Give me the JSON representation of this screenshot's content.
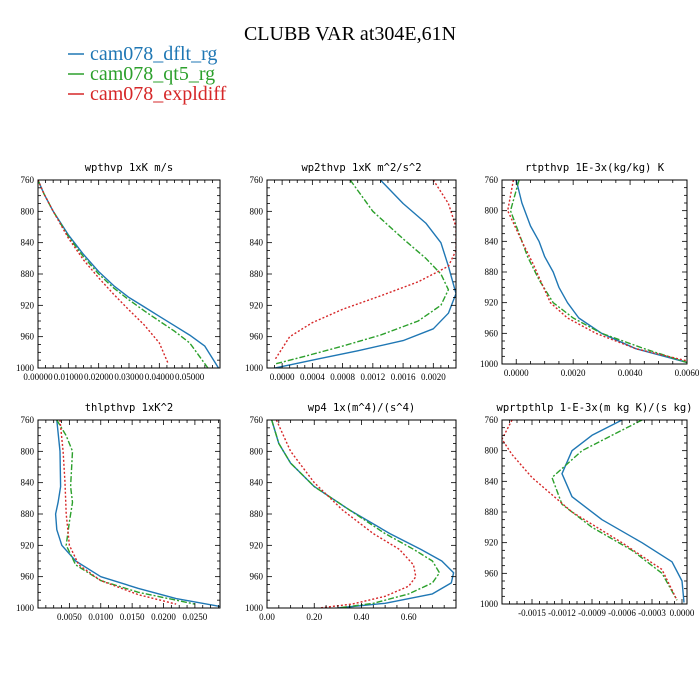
{
  "figure": {
    "title": "CLUBB VAR at304E,61N"
  },
  "legend": [
    {
      "label": "cam078_dflt_rg",
      "color": "#1f77b4"
    },
    {
      "label": "cam078_qt5_rg",
      "color": "#2ca02c"
    },
    {
      "label": "cam078_expldiff",
      "color": "#d62728"
    }
  ],
  "chart_data": [
    {
      "type": "line",
      "title": "wpthvp  1xK m/s",
      "xlim": [
        0.0,
        0.06
      ],
      "ylim": [
        760,
        1000
      ],
      "y_inverted": true,
      "xticks": [
        "0.00000",
        "0.01000",
        "0.02000",
        "0.03000",
        "0.04000",
        "0.05000"
      ],
      "xtick_values": [
        0.0,
        0.01,
        0.02,
        0.03,
        0.04,
        0.05
      ],
      "yticks": [
        "760",
        "800",
        "840",
        "880",
        "920",
        "960",
        "1000"
      ],
      "ytick_values": [
        760,
        800,
        840,
        880,
        920,
        960,
        1000
      ],
      "series": [
        {
          "name": "cam078_dflt_rg",
          "x": [
            0.0,
            0.002,
            0.005,
            0.01,
            0.015,
            0.02,
            0.025,
            0.03,
            0.035,
            0.04,
            0.045,
            0.05,
            0.055,
            0.0595
          ],
          "y": [
            760,
            778,
            800,
            830,
            855,
            877,
            895,
            910,
            922,
            934,
            946,
            958,
            972,
            1000
          ]
        },
        {
          "name": "cam078_qt5_rg",
          "x": [
            0.0,
            0.002,
            0.005,
            0.01,
            0.015,
            0.02,
            0.025,
            0.03,
            0.035,
            0.04,
            0.045,
            0.05,
            0.056
          ],
          "y": [
            760,
            778,
            800,
            832,
            858,
            880,
            898,
            913,
            927,
            940,
            953,
            968,
            1000
          ]
        },
        {
          "name": "cam078_expldiff",
          "x": [
            0.0,
            0.002,
            0.005,
            0.01,
            0.015,
            0.02,
            0.025,
            0.03,
            0.035,
            0.04,
            0.043
          ],
          "y": [
            760,
            778,
            800,
            834,
            862,
            885,
            906,
            926,
            945,
            968,
            995
          ]
        }
      ]
    },
    {
      "type": "line",
      "title": "wp2thvp  1xK m^2/s^2",
      "xlim": [
        -0.0002,
        0.0023
      ],
      "ylim": [
        760,
        1000
      ],
      "y_inverted": true,
      "xticks": [
        "0.0000",
        "0.0004",
        "0.0008",
        "0.0012",
        "0.0016",
        "0.0020"
      ],
      "xtick_values": [
        0.0,
        0.0004,
        0.0008,
        0.0012,
        0.0016,
        0.002
      ],
      "yticks": [
        "760",
        "800",
        "840",
        "880",
        "920",
        "960",
        "1000"
      ],
      "ytick_values": [
        760,
        800,
        840,
        880,
        920,
        960,
        1000
      ],
      "series": [
        {
          "name": "cam078_dflt_rg",
          "x": [
            0.0013,
            0.0016,
            0.0019,
            0.0021,
            0.0022,
            0.0023,
            0.0022,
            0.002,
            0.0016,
            0.001,
            0.0005,
            0.0001,
            -0.0001
          ],
          "y": [
            760,
            790,
            815,
            840,
            870,
            905,
            930,
            950,
            965,
            978,
            988,
            996,
            1000
          ]
        },
        {
          "name": "cam078_qt5_rg",
          "x": [
            0.0009,
            0.0012,
            0.0016,
            0.0019,
            0.0021,
            0.0022,
            0.0021,
            0.0018,
            0.0013,
            0.0008,
            0.0003,
            -0.0001
          ],
          "y": [
            760,
            800,
            835,
            860,
            880,
            900,
            920,
            940,
            958,
            972,
            985,
            995
          ]
        },
        {
          "name": "cam078_expldiff",
          "x": [
            0.002,
            0.0022,
            0.0023,
            0.0023,
            0.0022,
            0.0018,
            0.0013,
            0.0008,
            0.0004,
            0.0001,
            -0.0001
          ],
          "y": [
            760,
            790,
            820,
            850,
            870,
            890,
            908,
            925,
            942,
            960,
            990
          ]
        }
      ]
    },
    {
      "type": "line",
      "title": "rtpthvp  1E-3x(kg/kg) K",
      "xlim": [
        -0.0005,
        0.006
      ],
      "ylim": [
        760,
        1000
      ],
      "y_inverted": true,
      "xticks": [
        "0.0000",
        "0.0020",
        "0.0040",
        "0.0060"
      ],
      "xtick_values": [
        0.0,
        0.002,
        0.004,
        0.006
      ],
      "yticks": [
        "760",
        "800",
        "840",
        "880",
        "920",
        "960",
        "1000"
      ],
      "ytick_values": [
        760,
        800,
        840,
        880,
        920,
        960,
        1000
      ],
      "series": [
        {
          "name": "cam078_dflt_rg",
          "x": [
            0.0,
            0.0002,
            0.0005,
            0.0008,
            0.001,
            0.0013,
            0.0015,
            0.0018,
            0.0022,
            0.003,
            0.0042,
            0.006
          ],
          "y": [
            760,
            790,
            820,
            840,
            860,
            880,
            900,
            920,
            940,
            960,
            980,
            998
          ]
        },
        {
          "name": "cam078_qt5_rg",
          "x": [
            0.0001,
            -0.0002,
            0.0001,
            0.0004,
            0.0008,
            0.0013,
            0.002,
            0.003,
            0.0045,
            0.006
          ],
          "y": [
            760,
            800,
            830,
            860,
            890,
            920,
            940,
            960,
            980,
            998
          ]
        },
        {
          "name": "cam078_expldiff",
          "x": [
            -0.0001,
            -0.0003,
            0.0002,
            0.0006,
            0.0009,
            0.0012,
            0.0018,
            0.0028,
            0.0042,
            0.006
          ],
          "y": [
            760,
            800,
            840,
            870,
            895,
            920,
            940,
            960,
            980,
            996
          ]
        }
      ]
    },
    {
      "type": "line",
      "title": "thlpthvp  1xK^2",
      "xlim": [
        0.0,
        0.029
      ],
      "ylim": [
        760,
        1000
      ],
      "y_inverted": true,
      "xticks": [
        "0.0050",
        "0.0100",
        "0.0150",
        "0.0200",
        "0.0250"
      ],
      "xtick_values": [
        0.005,
        0.01,
        0.015,
        0.02,
        0.025
      ],
      "yticks": [
        "760",
        "800",
        "840",
        "880",
        "920",
        "960",
        "1000"
      ],
      "ytick_values": [
        760,
        800,
        840,
        880,
        920,
        960,
        1000
      ],
      "series": [
        {
          "name": "cam078_dflt_rg",
          "x": [
            0.003,
            0.0035,
            0.0036,
            0.0032,
            0.0028,
            0.003,
            0.0038,
            0.006,
            0.01,
            0.016,
            0.022,
            0.029
          ],
          "y": [
            760,
            800,
            845,
            865,
            880,
            900,
            920,
            940,
            960,
            975,
            988,
            998
          ]
        },
        {
          "name": "cam078_qt5_rg",
          "x": [
            0.003,
            0.0045,
            0.0055,
            0.0052,
            0.0055,
            0.005,
            0.0045,
            0.006,
            0.01,
            0.016,
            0.025
          ],
          "y": [
            760,
            780,
            800,
            845,
            865,
            890,
            920,
            945,
            965,
            980,
            995
          ]
        },
        {
          "name": "cam078_expldiff",
          "x": [
            0.0035,
            0.004,
            0.0043,
            0.0045,
            0.005,
            0.0065,
            0.01,
            0.016,
            0.022
          ],
          "y": [
            760,
            800,
            840,
            880,
            920,
            945,
            965,
            983,
            995
          ]
        }
      ]
    },
    {
      "type": "line",
      "title": "wp4  1x(m^4)/(s^4)",
      "xlim": [
        0.0,
        0.8
      ],
      "ylim": [
        760,
        1000
      ],
      "y_inverted": true,
      "xticks": [
        "0.00",
        "0.20",
        "0.40",
        "0.60"
      ],
      "xtick_values": [
        0.0,
        0.2,
        0.4,
        0.6
      ],
      "yticks": [
        "760",
        "800",
        "840",
        "880",
        "920",
        "960",
        "1000"
      ],
      "ytick_values": [
        760,
        800,
        840,
        880,
        920,
        960,
        1000
      ],
      "series": [
        {
          "name": "cam078_dflt_rg",
          "x": [
            0.02,
            0.05,
            0.1,
            0.2,
            0.35,
            0.52,
            0.65,
            0.74,
            0.79,
            0.78,
            0.7,
            0.5,
            0.3
          ],
          "y": [
            760,
            790,
            815,
            845,
            875,
            905,
            925,
            940,
            955,
            968,
            982,
            994,
            1000
          ]
        },
        {
          "name": "cam078_qt5_rg",
          "x": [
            0.02,
            0.05,
            0.1,
            0.2,
            0.35,
            0.5,
            0.62,
            0.7,
            0.73,
            0.7,
            0.6,
            0.45,
            0.3
          ],
          "y": [
            760,
            790,
            815,
            845,
            875,
            905,
            925,
            940,
            955,
            968,
            982,
            994,
            1000
          ]
        },
        {
          "name": "cam078_expldiff",
          "x": [
            0.04,
            0.1,
            0.2,
            0.32,
            0.45,
            0.56,
            0.62,
            0.63,
            0.6,
            0.5,
            0.36,
            0.22
          ],
          "y": [
            760,
            800,
            840,
            875,
            905,
            925,
            945,
            960,
            972,
            985,
            995,
            1000
          ]
        }
      ]
    },
    {
      "type": "line",
      "title": "wprtpthlp  1-E-3x(m kg K)/(s kg)",
      "xlim": [
        -0.0018,
        5e-05
      ],
      "ylim": [
        760,
        1000
      ],
      "y_inverted": true,
      "xticks": [
        "-0.0015",
        "-0.0012",
        "-0.0009",
        "-0.0006",
        "-0.0003",
        "0.0000"
      ],
      "xtick_values": [
        -0.0015,
        -0.0012,
        -0.0009,
        -0.0006,
        -0.0003,
        0.0
      ],
      "yticks": [
        "760",
        "800",
        "840",
        "880",
        "920",
        "960",
        "1000"
      ],
      "ytick_values": [
        760,
        800,
        840,
        880,
        920,
        960,
        1000
      ],
      "series": [
        {
          "name": "cam078_dflt_rg",
          "x": [
            -0.0006,
            -0.0009,
            -0.0011,
            -0.0012,
            -0.0011,
            -0.0008,
            -0.0004,
            -0.0001,
            0.0,
            2e-05
          ],
          "y": [
            760,
            780,
            800,
            830,
            860,
            890,
            920,
            945,
            970,
            998
          ]
        },
        {
          "name": "cam078_qt5_rg",
          "x": [
            -0.0004,
            -0.0007,
            -0.001,
            -0.0013,
            -0.0012,
            -0.0009,
            -0.0005,
            -0.0002,
            -5e-05
          ],
          "y": [
            760,
            780,
            800,
            835,
            870,
            900,
            930,
            960,
            995
          ]
        },
        {
          "name": "cam078_expldiff",
          "x": [
            -0.0017,
            -0.0018,
            -0.0017,
            -0.0015,
            -0.0011,
            -0.0006,
            -0.0002,
            -5e-05
          ],
          "y": [
            760,
            785,
            805,
            835,
            880,
            920,
            955,
            995
          ]
        }
      ]
    }
  ]
}
